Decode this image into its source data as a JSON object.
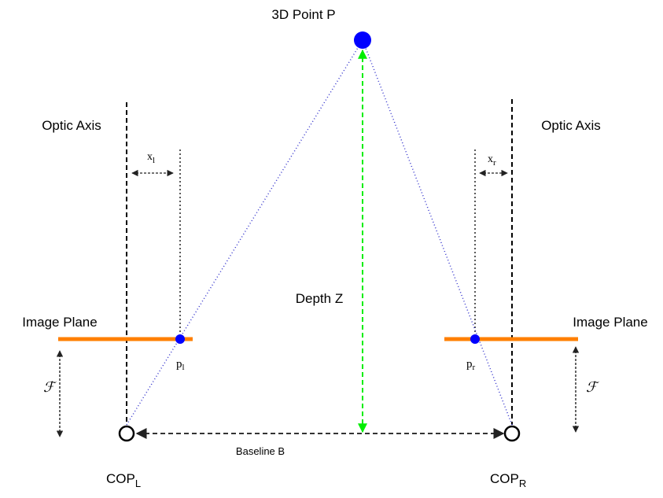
{
  "title": "3D Point P",
  "left": {
    "optic_axis_label": "Optic Axis",
    "image_plane_label": "Image Plane",
    "x_label": "x",
    "x_sub": "l",
    "p_label": "p",
    "p_sub": "l",
    "f_label": "ℱ",
    "cop_label": "COP",
    "cop_sub": "L"
  },
  "right": {
    "optic_axis_label": "Optic Axis",
    "image_plane_label": "Image Plane",
    "x_label": "x",
    "x_sub": "r",
    "p_label": "p",
    "p_sub": "r",
    "f_label": "ℱ",
    "cop_label": "COP",
    "cop_sub": "R"
  },
  "depth_label": "Depth Z",
  "baseline_label": "Baseline B",
  "colors": {
    "point": "#0000ff",
    "image_plane": "#ff7f00",
    "depth_arrow": "#00ee00",
    "ray": "#3333cc",
    "axis": "#000000"
  }
}
